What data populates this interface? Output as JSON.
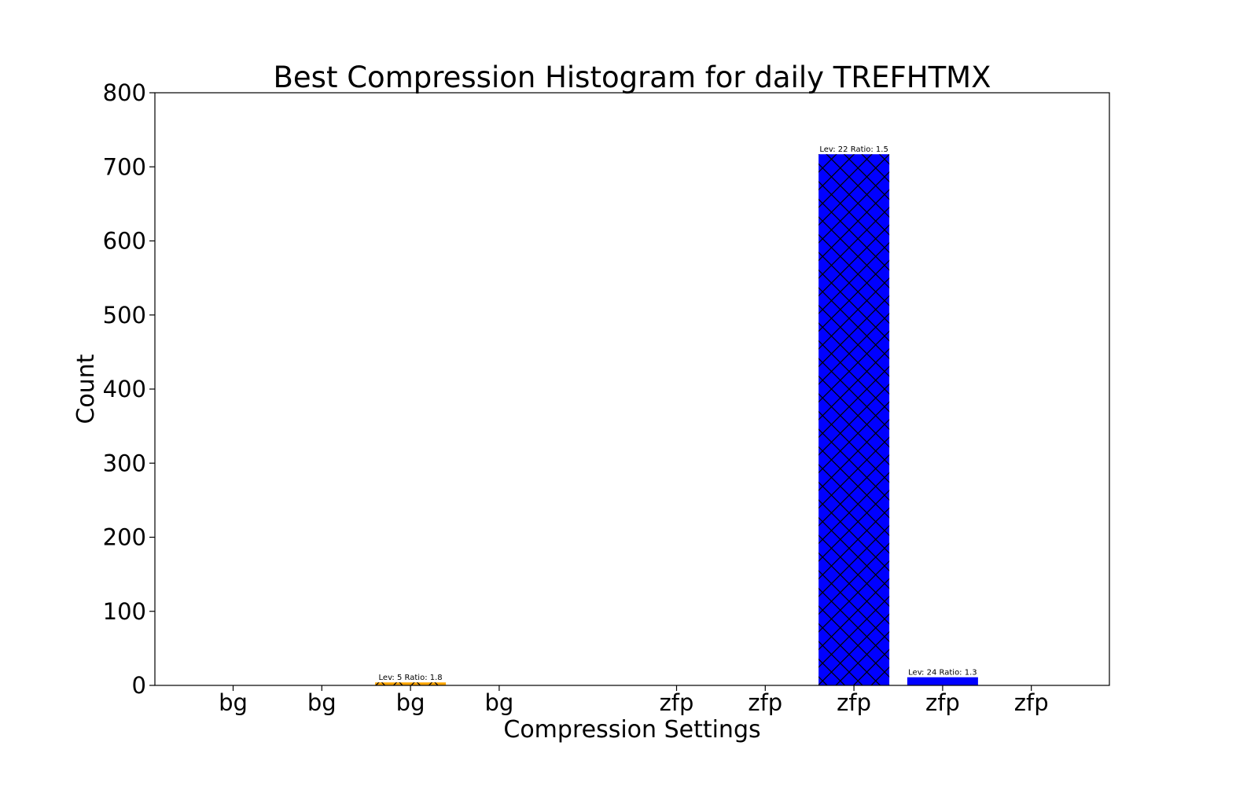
{
  "chart_data": {
    "type": "bar",
    "title": "Best Compression Histogram for daily TREFHTMX",
    "xlabel": "Compression Settings",
    "ylabel": "Count",
    "ylim": [
      0,
      800
    ],
    "yticks": [
      0,
      100,
      200,
      300,
      400,
      500,
      600,
      700,
      800
    ],
    "grid": false,
    "categories": [
      "bg",
      "bg",
      "bg",
      "bg",
      "",
      "zfp",
      "zfp",
      "zfp",
      "zfp",
      "zfp"
    ],
    "values": [
      0,
      0,
      4,
      0,
      0,
      0,
      0,
      717,
      11,
      0
    ],
    "bar_labels": [
      "",
      "",
      "Lev: 5 Ratio: 1.8",
      "",
      "",
      "",
      "",
      "Lev: 22 Ratio: 1.5",
      "Lev: 24 Ratio: 1.3",
      ""
    ],
    "colors": {
      "bg": "#ffa500",
      "zfp": "#0000ff"
    },
    "hatched_bars": [
      2,
      7
    ]
  }
}
